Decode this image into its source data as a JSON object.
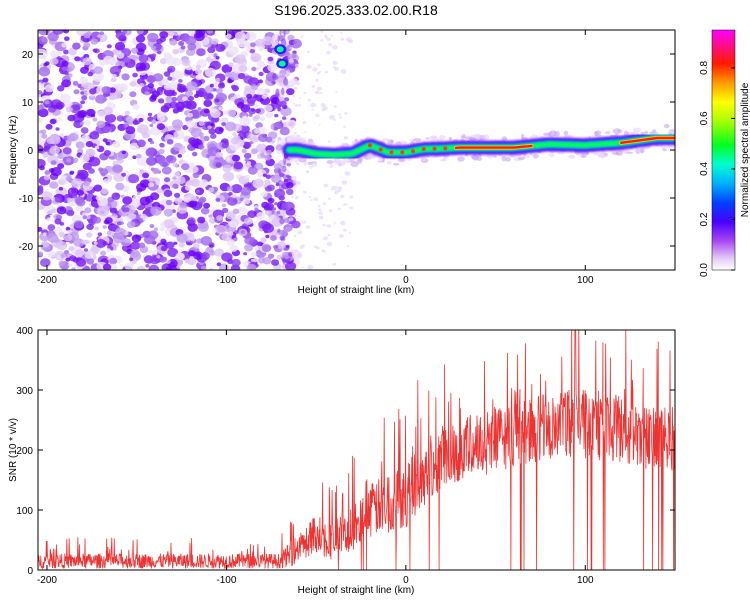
{
  "title": "S196.2025.333.02.00.R18",
  "chart_data": [
    {
      "type": "heatmap",
      "title": "S196.2025.333.02.00.R18",
      "xlabel": "Height of straight line (km)",
      "ylabel": "Frequency (Hz)",
      "xlim": [
        -205,
        150
      ],
      "ylim": [
        -25,
        25
      ],
      "xticks": [
        -200,
        -100,
        0,
        100
      ],
      "yticks": [
        -20,
        -10,
        0,
        10,
        20
      ],
      "grid": false,
      "description_points": {
        "noise_region_x": [
          -205,
          -65
        ],
        "signal_start_x": -65,
        "signal_freq_hz": [
          {
            "x": -60,
            "y": 0.0
          },
          {
            "x": -50,
            "y": -0.8
          },
          {
            "x": -40,
            "y": -1.0
          },
          {
            "x": -30,
            "y": -0.8
          },
          {
            "x": -20,
            "y": 1.0
          },
          {
            "x": -10,
            "y": -0.5
          },
          {
            "x": 0,
            "y": -0.5
          },
          {
            "x": 10,
            "y": 0.2
          },
          {
            "x": 20,
            "y": 0.3
          },
          {
            "x": 30,
            "y": 0.5
          },
          {
            "x": 60,
            "y": 0.5
          },
          {
            "x": 80,
            "y": 1.2
          },
          {
            "x": 100,
            "y": 1.0
          },
          {
            "x": 120,
            "y": 1.5
          },
          {
            "x": 140,
            "y": 2.5
          },
          {
            "x": 150,
            "y": 2.5
          }
        ],
        "spot_near_x": -70,
        "spot_freq_hz": [
          21,
          18
        ]
      },
      "colorbar": {
        "label": "Normalized spectral amplitude",
        "min": 0.0,
        "max": 0.95,
        "ticks": [
          0.0,
          0.2,
          0.4,
          0.6,
          0.8
        ],
        "tick_labels": [
          "0.0",
          "0.2",
          "0.4",
          "0.6",
          "0.8"
        ],
        "colors": [
          "#ffffff",
          "#d9b8f2",
          "#8a2be2",
          "#5b00ff",
          "#0000ff",
          "#00aaff",
          "#00ffff",
          "#00ff00",
          "#c8ff00",
          "#ffff00",
          "#ff8800",
          "#ff0000",
          "#ff00ff"
        ]
      }
    },
    {
      "type": "line",
      "xlabel": "Height of straight line (km)",
      "ylabel": "SNR (10 * v/v)",
      "xlim": [
        -205,
        150
      ],
      "ylim": [
        0,
        400
      ],
      "xticks": [
        -200,
        -100,
        0,
        100
      ],
      "yticks": [
        0,
        100,
        200,
        300,
        400
      ],
      "color": "#ee3333",
      "series": [
        {
          "name": "SNR",
          "envelope_x": [
            -205,
            -70,
            -65,
            -50,
            -40,
            -30,
            -20,
            -10,
            0,
            10,
            20,
            40,
            60,
            80,
            100,
            120,
            140,
            150
          ],
          "envelope_y": [
            15,
            15,
            25,
            60,
            50,
            65,
            100,
            110,
            125,
            160,
            190,
            210,
            225,
            240,
            245,
            235,
            215,
            220
          ],
          "spike_amplitude": [
            25,
            25,
            40,
            70,
            70,
            80,
            90,
            100,
            110,
            110,
            110,
            110,
            110,
            110,
            120,
            110,
            110,
            110
          ]
        }
      ]
    }
  ]
}
